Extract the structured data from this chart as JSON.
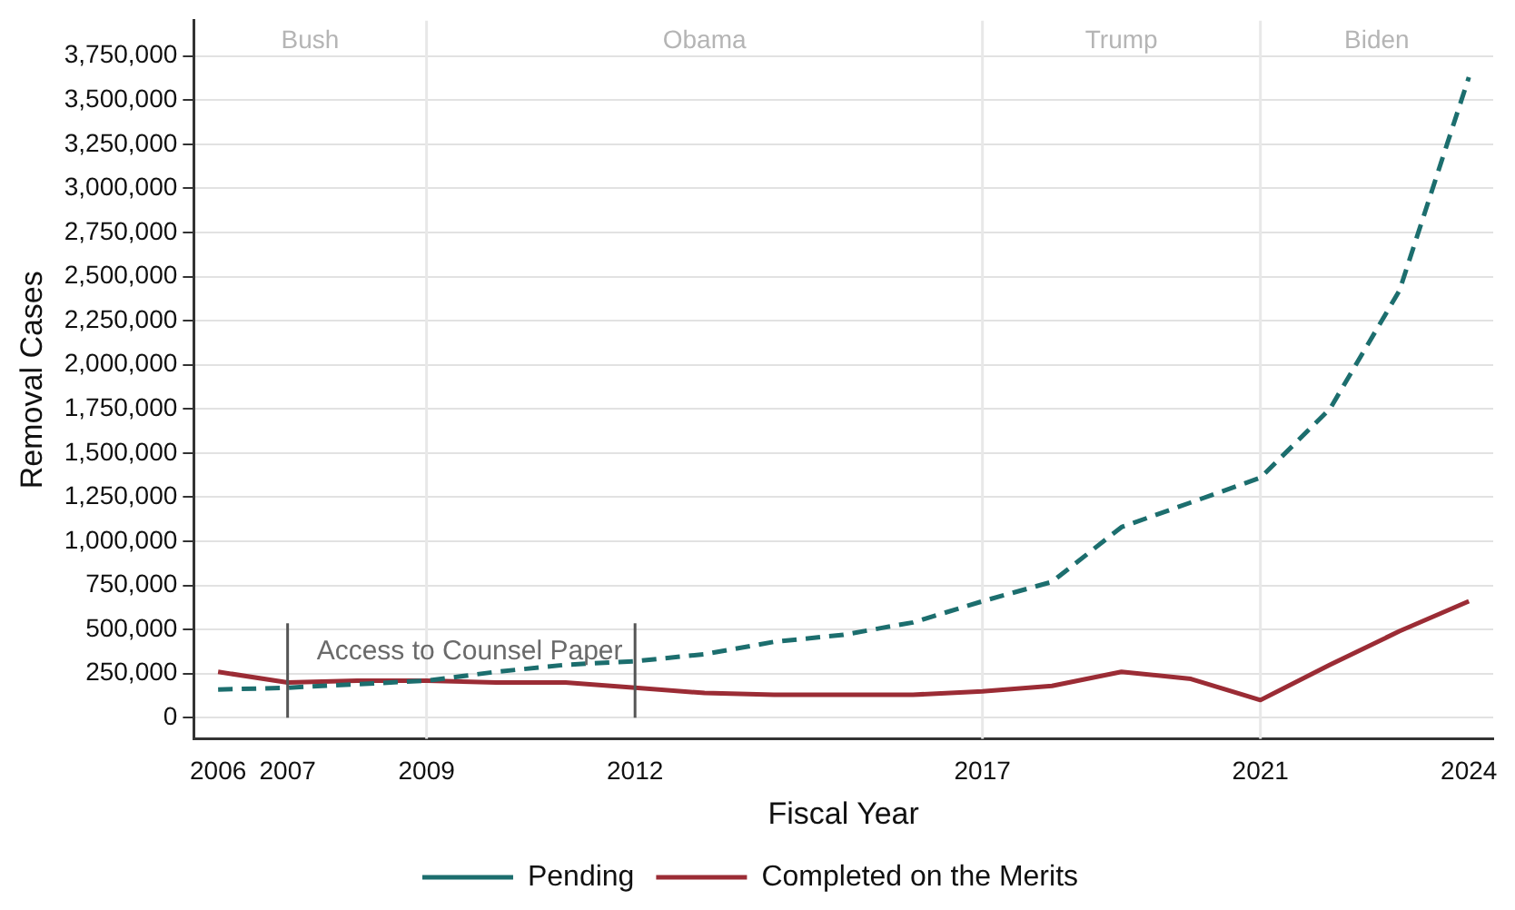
{
  "chart_data": {
    "type": "line",
    "xlabel": "Fiscal Year",
    "ylabel": "Removal Cases",
    "x": [
      2006,
      2007,
      2008,
      2009,
      2010,
      2011,
      2012,
      2013,
      2014,
      2015,
      2016,
      2017,
      2018,
      2019,
      2020,
      2021,
      2022,
      2023,
      2024
    ],
    "series": [
      {
        "name": "Pending",
        "color": "#1c6e6e",
        "line_style": "dashed",
        "values": [
          160000,
          170000,
          190000,
          210000,
          260000,
          300000,
          320000,
          360000,
          430000,
          470000,
          540000,
          660000,
          770000,
          1080000,
          1220000,
          1360000,
          1750000,
          2420000,
          3630000
        ]
      },
      {
        "name": "Completed on the Merits",
        "color": "#9b2c35",
        "line_style": "solid",
        "values": [
          260000,
          200000,
          210000,
          210000,
          200000,
          200000,
          170000,
          140000,
          130000,
          130000,
          130000,
          150000,
          180000,
          260000,
          220000,
          100000,
          300000,
          490000,
          660000
        ]
      }
    ],
    "xlim": [
      2005.65,
      2024.35
    ],
    "xticks": [
      2006,
      2007,
      2009,
      2012,
      2017,
      2021,
      2024
    ],
    "ylim": [
      -120000,
      3950000
    ],
    "yticks": [
      {
        "value": 0,
        "label": "0"
      },
      {
        "value": 250000,
        "label": "250,000"
      },
      {
        "value": 500000,
        "label": "500,000"
      },
      {
        "value": 750000,
        "label": "750,000"
      },
      {
        "value": 1000000,
        "label": "1,000,000"
      },
      {
        "value": 1250000,
        "label": "1,250,000"
      },
      {
        "value": 1500000,
        "label": "1,500,000"
      },
      {
        "value": 1750000,
        "label": "1,750,000"
      },
      {
        "value": 2000000,
        "label": "2,000,000"
      },
      {
        "value": 2250000,
        "label": "2,250,000"
      },
      {
        "value": 2500000,
        "label": "2,500,000"
      },
      {
        "value": 2750000,
        "label": "2,750,000"
      },
      {
        "value": 3000000,
        "label": "3,000,000"
      },
      {
        "value": 3250000,
        "label": "3,250,000"
      },
      {
        "value": 3500000,
        "label": "3,500,000"
      },
      {
        "value": 3750000,
        "label": "3,750,000"
      }
    ],
    "grid": "y",
    "legend": "bottom",
    "marker": "none",
    "ref_lines": [
      {
        "axis": "x",
        "value": 2009,
        "color": "#e8e8e8"
      },
      {
        "axis": "x",
        "value": 2017,
        "color": "#e8e8e8"
      },
      {
        "axis": "x",
        "value": 2021,
        "color": "#e8e8e8"
      },
      {
        "axis": "x",
        "value": 2007,
        "color": "#555555"
      },
      {
        "axis": "x",
        "value": 2012,
        "color": "#555555"
      }
    ],
    "annotations": [
      "Bush",
      "Obama",
      "Trump",
      "Biden",
      {
        "text": "Access to Counsel Paper",
        "x": 2007,
        "y": 375000
      }
    ]
  }
}
